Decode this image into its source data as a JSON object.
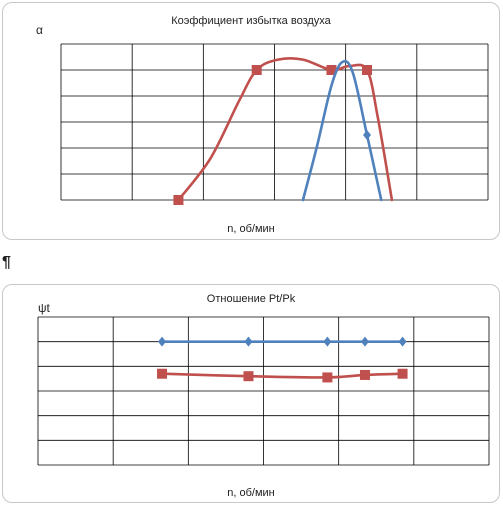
{
  "colors": {
    "red": "#c0504d",
    "blue": "#4f81bd",
    "grid": "#000000"
  },
  "pilcrow": "¶",
  "chart_data": [
    {
      "type": "line",
      "title": "Коэффициент избытка воздуха",
      "ylabel": "α",
      "xlabel": "n, об/мин",
      "grid": true,
      "grid_cols": 6,
      "grid_rows": 6,
      "x_range": [
        0,
        6
      ],
      "y_range": [
        0,
        6
      ],
      "series": [
        {
          "color": "red",
          "marker": "square",
          "points": [
            [
              1.65,
              0
            ],
            [
              2.75,
              5
            ],
            [
              3.8,
              5
            ],
            [
              4.3,
              5
            ]
          ],
          "curve": [
            [
              1.65,
              0
            ],
            [
              2.1,
              1.6
            ],
            [
              2.5,
              3.8
            ],
            [
              2.75,
              5
            ],
            [
              3.05,
              5.4
            ],
            [
              3.4,
              5.4
            ],
            [
              3.8,
              5
            ],
            [
              4.05,
              5.15
            ],
            [
              4.3,
              5
            ],
            [
              4.45,
              3.2
            ],
            [
              4.65,
              0
            ]
          ]
        },
        {
          "color": "blue",
          "marker": "diamond",
          "points": [
            [
              4.3,
              2.5
            ]
          ],
          "curve": [
            [
              3.4,
              0
            ],
            [
              3.6,
              2.1
            ],
            [
              3.8,
              4.4
            ],
            [
              3.95,
              5.3
            ],
            [
              4.1,
              4.9
            ],
            [
              4.3,
              2.5
            ],
            [
              4.5,
              0
            ]
          ]
        }
      ]
    },
    {
      "type": "line",
      "title": "Отношение  Pt/Pk",
      "ylabel": "ψt",
      "xlabel": "n, об/мин",
      "grid": true,
      "grid_cols": 6,
      "grid_rows": 6,
      "x_range": [
        0,
        6
      ],
      "y_range": [
        0,
        6
      ],
      "series": [
        {
          "color": "blue",
          "marker": "diamond",
          "points": [
            [
              1.65,
              5
            ],
            [
              2.8,
              5
            ],
            [
              3.85,
              5
            ],
            [
              4.35,
              5
            ],
            [
              4.85,
              5
            ]
          ]
        },
        {
          "color": "red",
          "marker": "square",
          "points": [
            [
              1.65,
              3.7
            ],
            [
              2.8,
              3.6
            ],
            [
              3.85,
              3.55
            ],
            [
              4.35,
              3.65
            ],
            [
              4.85,
              3.7
            ]
          ]
        }
      ]
    }
  ]
}
